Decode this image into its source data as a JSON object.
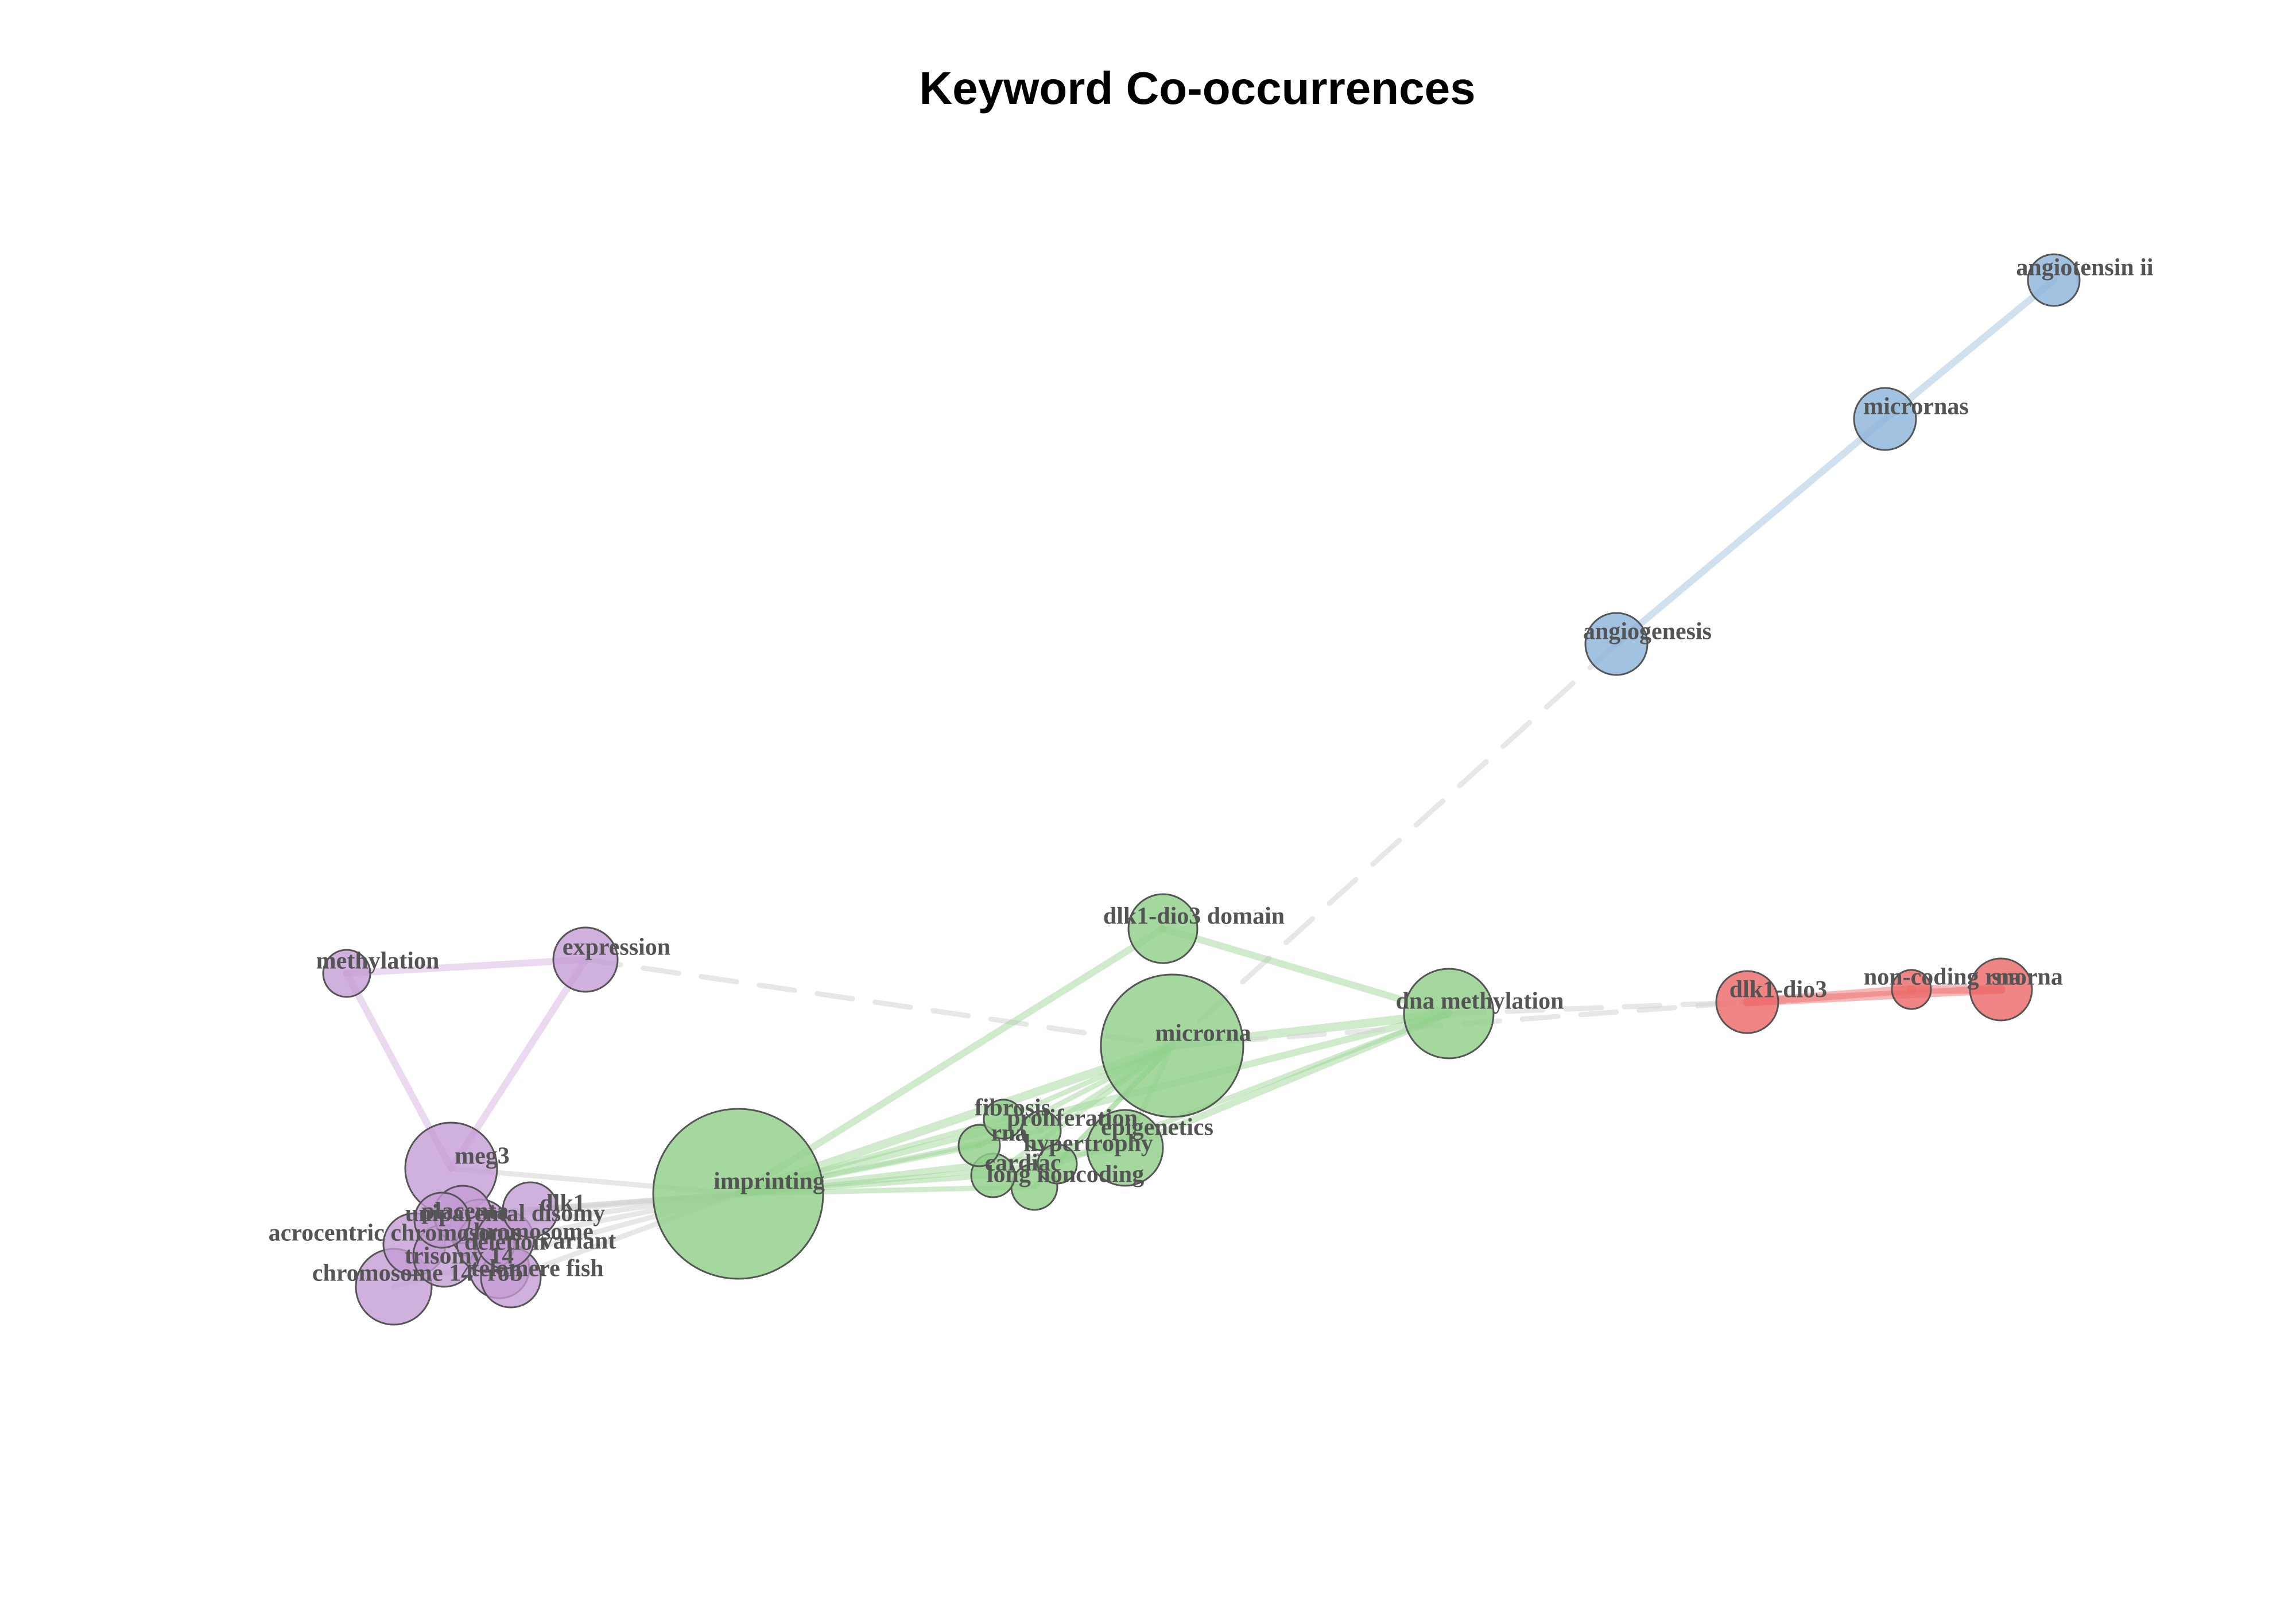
{
  "title": "Keyword Co-occurrences",
  "colors": {
    "cluster_purple": "#c39bd3",
    "cluster_green": "#90d08a",
    "cluster_blue": "#8db4da",
    "cluster_red": "#ec6a6a",
    "node_stroke": "#555555",
    "label": "#545454",
    "edge_inter": "#d4d4d4"
  },
  "chart_data": {
    "type": "network",
    "title": "Keyword Co-occurrences",
    "clusters": [
      "purple",
      "green",
      "blue",
      "red"
    ],
    "nodes": [
      {
        "id": "angiotensin ii",
        "cluster": "blue",
        "weight": 1.2
      },
      {
        "id": "micrornas",
        "cluster": "blue",
        "weight": 1.5
      },
      {
        "id": "angiogenesis",
        "cluster": "blue",
        "weight": 1.5
      },
      {
        "id": "methylation",
        "cluster": "purple",
        "weight": 1.0
      },
      {
        "id": "expression",
        "cluster": "purple",
        "weight": 1.8
      },
      {
        "id": "meg3",
        "cluster": "purple",
        "weight": 4.0
      },
      {
        "id": "dlk1",
        "cluster": "purple",
        "weight": 2.0
      },
      {
        "id": "uniparental disomy",
        "cluster": "purple",
        "weight": 2.0
      },
      {
        "id": "placenta",
        "cluster": "purple",
        "weight": 2.0
      },
      {
        "id": "chromosome",
        "cluster": "purple",
        "weight": 2.0
      },
      {
        "id": "deletion",
        "cluster": "purple",
        "weight": 2.0
      },
      {
        "id": "variant",
        "cluster": "purple",
        "weight": 2.0
      },
      {
        "id": "acrocentric chromosome",
        "cluster": "purple",
        "weight": 2.0
      },
      {
        "id": "trisomy 14",
        "cluster": "purple",
        "weight": 2.0
      },
      {
        "id": "rob",
        "cluster": "purple",
        "weight": 2.0
      },
      {
        "id": "telomere fish",
        "cluster": "purple",
        "weight": 2.0
      },
      {
        "id": "chromosome 14",
        "cluster": "purple",
        "weight": 2.8
      },
      {
        "id": "imprinting",
        "cluster": "green",
        "weight": 14.0
      },
      {
        "id": "microrna",
        "cluster": "green",
        "weight": 9.5
      },
      {
        "id": "dlk1-dio3 domain",
        "cluster": "green",
        "weight": 2.2
      },
      {
        "id": "dna methylation",
        "cluster": "green",
        "weight": 3.8
      },
      {
        "id": "fibrosis",
        "cluster": "green",
        "weight": 1.0
      },
      {
        "id": "proliferation",
        "cluster": "green",
        "weight": 1.0
      },
      {
        "id": "rna",
        "cluster": "green",
        "weight": 1.0
      },
      {
        "id": "cardiac",
        "cluster": "green",
        "weight": 1.0
      },
      {
        "id": "hypertrophy",
        "cluster": "green",
        "weight": 1.0
      },
      {
        "id": "epigenetics",
        "cluster": "green",
        "weight": 2.8
      },
      {
        "id": "long noncoding",
        "cluster": "green",
        "weight": 1.0
      },
      {
        "id": "dlk1-dio3",
        "cluster": "red",
        "weight": 1.8
      },
      {
        "id": "non-coding rna",
        "cluster": "red",
        "weight": 0.8
      },
      {
        "id": "snorna",
        "cluster": "red",
        "weight": 1.8
      }
    ],
    "edges": [
      {
        "source": "angiotensin ii",
        "target": "micrornas",
        "cluster": "blue",
        "weight": 2
      },
      {
        "source": "micrornas",
        "target": "angiogenesis",
        "cluster": "blue",
        "weight": 2
      },
      {
        "source": "angiogenesis",
        "target": "microrna",
        "cluster": "inter",
        "weight": 2
      },
      {
        "source": "methylation",
        "target": "expression",
        "cluster": "purple",
        "weight": 2
      },
      {
        "source": "methylation",
        "target": "meg3",
        "cluster": "purple",
        "weight": 2
      },
      {
        "source": "expression",
        "target": "meg3",
        "cluster": "purple",
        "weight": 2
      },
      {
        "source": "expression",
        "target": "microrna",
        "cluster": "inter",
        "weight": 2
      },
      {
        "source": "meg3",
        "target": "imprinting",
        "cluster": "inter",
        "weight": 2
      },
      {
        "source": "dlk1",
        "target": "imprinting",
        "cluster": "inter",
        "weight": 1
      },
      {
        "source": "uniparental disomy",
        "target": "imprinting",
        "cluster": "inter",
        "weight": 1
      },
      {
        "source": "placenta",
        "target": "imprinting",
        "cluster": "inter",
        "weight": 1
      },
      {
        "source": "chromosome",
        "target": "imprinting",
        "cluster": "inter",
        "weight": 1
      },
      {
        "source": "variant",
        "target": "imprinting",
        "cluster": "inter",
        "weight": 1
      },
      {
        "source": "telomere fish",
        "target": "imprinting",
        "cluster": "inter",
        "weight": 1
      },
      {
        "source": "chromosome 14",
        "target": "imprinting",
        "cluster": "inter",
        "weight": 1
      },
      {
        "source": "imprinting",
        "target": "microrna",
        "cluster": "green",
        "weight": 3
      },
      {
        "source": "imprinting",
        "target": "dlk1-dio3 domain",
        "cluster": "green",
        "weight": 2
      },
      {
        "source": "imprinting",
        "target": "dna methylation",
        "cluster": "green",
        "weight": 2
      },
      {
        "source": "imprinting",
        "target": "fibrosis",
        "cluster": "green",
        "weight": 1
      },
      {
        "source": "imprinting",
        "target": "proliferation",
        "cluster": "green",
        "weight": 1
      },
      {
        "source": "imprinting",
        "target": "rna",
        "cluster": "green",
        "weight": 1
      },
      {
        "source": "imprinting",
        "target": "cardiac",
        "cluster": "green",
        "weight": 1
      },
      {
        "source": "imprinting",
        "target": "hypertrophy",
        "cluster": "green",
        "weight": 1
      },
      {
        "source": "imprinting",
        "target": "epigenetics",
        "cluster": "green",
        "weight": 2
      },
      {
        "source": "imprinting",
        "target": "long noncoding",
        "cluster": "green",
        "weight": 1
      },
      {
        "source": "microrna",
        "target": "dna methylation",
        "cluster": "green",
        "weight": 3
      },
      {
        "source": "dlk1-dio3 domain",
        "target": "dna methylation",
        "cluster": "green",
        "weight": 2
      },
      {
        "source": "microrna",
        "target": "fibrosis",
        "cluster": "green",
        "weight": 1
      },
      {
        "source": "microrna",
        "target": "proliferation",
        "cluster": "green",
        "weight": 1
      },
      {
        "source": "microrna",
        "target": "rna",
        "cluster": "green",
        "weight": 1
      },
      {
        "source": "microrna",
        "target": "cardiac",
        "cluster": "green",
        "weight": 1
      },
      {
        "source": "microrna",
        "target": "hypertrophy",
        "cluster": "green",
        "weight": 1
      },
      {
        "source": "microrna",
        "target": "epigenetics",
        "cluster": "green",
        "weight": 1
      },
      {
        "source": "microrna",
        "target": "long noncoding",
        "cluster": "green",
        "weight": 1
      },
      {
        "source": "dna methylation",
        "target": "epigenetics",
        "cluster": "green",
        "weight": 2
      },
      {
        "source": "dna methylation",
        "target": "hypertrophy",
        "cluster": "green",
        "weight": 1
      },
      {
        "source": "dna methylation",
        "target": "dlk1-dio3",
        "cluster": "inter",
        "weight": 2
      },
      {
        "source": "microrna",
        "target": "dlk1-dio3",
        "cluster": "inter",
        "weight": 1
      },
      {
        "source": "dlk1-dio3",
        "target": "non-coding rna",
        "cluster": "red",
        "weight": 3
      },
      {
        "source": "dlk1-dio3",
        "target": "snorna",
        "cluster": "red",
        "weight": 3
      },
      {
        "source": "non-coding rna",
        "target": "snorna",
        "cluster": "red",
        "weight": 3
      }
    ]
  }
}
